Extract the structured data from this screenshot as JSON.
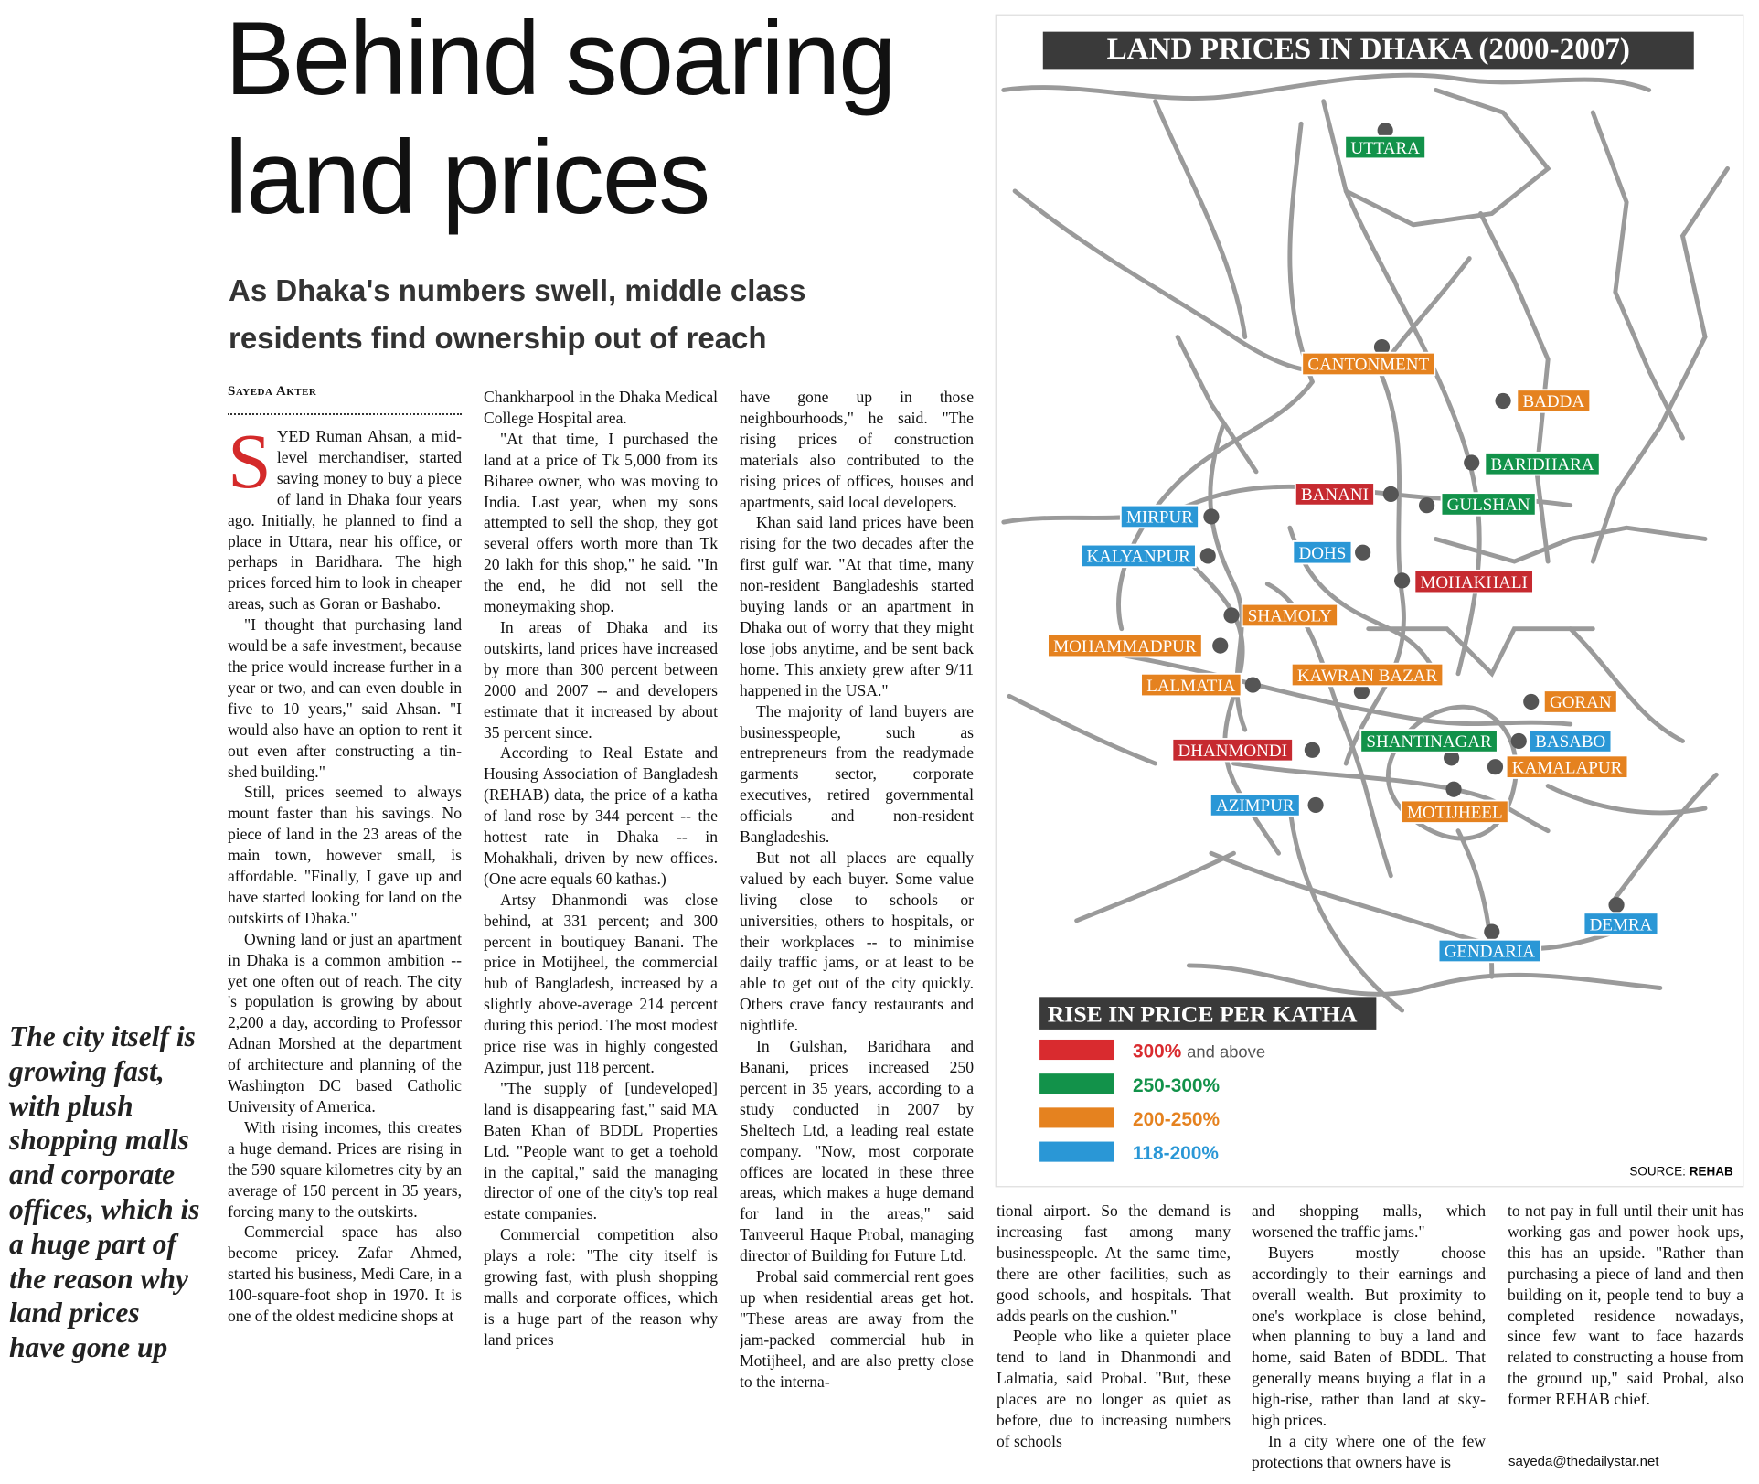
{
  "headline": [
    "Behind soaring",
    "land prices"
  ],
  "subhead": [
    "As Dhaka's numbers swell, middle class",
    "residents find ownership out of reach"
  ],
  "byline": "Sayeda Akter",
  "drop_cap": "S",
  "pull_quote": "The city itself is growing fast, with plush shopping malls and corporate offices, which is a huge part of the reason why land prices have gone up",
  "columns": [
    [
      "YED Ruman Ahsan, a mid-level merchandiser, started saving money to buy a piece of land in Dhaka four years ago. Initially, he planned to find a place in Uttara, near his office, or perhaps in Baridhara. The high prices forced him to look in cheaper areas, such as Goran or Bashabo.",
      "\"I thought that purchasing land would be a safe investment, because the price would increase further in a year or two, and can even double in five to 10 years,\" said Ahsan. \"I would also have an option to rent it out even after constructing a tin-shed building.\"",
      "Still, prices seemed to always mount faster than his savings. No piece of land in the 23 areas of the main town, however small, is affordable. \"Finally, I gave up and have started looking for land on the outskirts of Dhaka.\"",
      "Owning land or just an apartment in Dhaka is a common ambition -- yet one often out of reach. The city 's population is growing by about 2,200 a day, according to Professor Adnan Morshed at the department of architecture and planning of the Washington DC based Catholic University of America.",
      "With rising incomes, this creates a huge demand. Prices are rising in the 590 square kilometres city by an average of 150 percent in 35 years, forcing many to the outskirts.",
      "Commercial space has also become pricey. Zafar Ahmed, started his business, Medi Care, in a 100-square-foot shop in 1970. It is one of the oldest medicine shops at"
    ],
    [
      "Chankharpool in the Dhaka Medical College Hospital area.",
      "\"At that time, I purchased the land at a price of Tk 5,000 from its Biharee owner, who was moving to India. Last year, when my sons attempted to sell the shop, they got several offers worth more than Tk 20 lakh for this shop,\" he said. \"In the end, he did not sell the moneymaking shop.",
      "In areas of Dhaka and its outskirts, land prices have increased by more than 300 percent between 2000 and 2007 -- and developers estimate that it increased by about 35 percent since.",
      "According to Real Estate and Housing Association of Bangladesh (REHAB) data, the price of a katha of land rose by 344 percent -- the hottest rate in Dhaka -- in Mohakhali, driven by new offices. (One acre equals 60 kathas.)",
      "Artsy Dhanmondi was close behind, at 331 percent; and 300 percent in boutiquey Banani. The price in Motijheel, the commercial hub of Bangladesh, increased by a slightly above-average 214 percent during this period. The most modest price rise was in highly congested Azimpur, just 118 percent.",
      "\"The supply of [undeveloped] land is disappearing fast,\" said MA Baten Khan of BDDL Properties Ltd. \"People want to get a toehold in the capital,\" said the managing director of one of the city's top real estate companies.",
      "Commercial competition also plays a role: \"The city itself is growing fast, with plush shopping malls and corporate offices, which is a huge part of the reason why land prices"
    ],
    [
      "have gone up in those neighbourhoods,\" he said. \"The rising prices of construction materials also contributed to the rising prices of offices, houses and apartments, said local developers.",
      "Khan said land prices have been rising for the two decades after the first gulf war. \"At that time, many non-resident Bangladeshis started buying lands or an apartment in Dhaka out of worry that they might lose jobs anytime, and be sent back home. This anxiety grew after 9/11 happened in the USA.\"",
      "The majority of land buyers are businesspeople, such as entrepreneurs from the readymade garments sector, corporate executives, retired governmental officials and non-resident Bangladeshis.",
      "But not all places are equally valued by each buyer. Some value living close to schools or universities, others to hospitals, or their workplaces -- to minimise daily traffic jams, or at least to be able to get out of the city quickly. Others crave fancy restaurants and nightlife.",
      "In Gulshan, Baridhara and Banani, prices increased 250 percent in 35 years, according to a study conducted in 2007 by Sheltech Ltd, a leading real estate company. \"Now, most corporate offices are located in these three areas, which makes a huge demand for land in the areas,\" said Tanveerul Haque Probal, managing director of Building for Future Ltd.",
      "Probal said commercial rent goes up when residential areas get hot. \"These areas are away from the jam-packed commercial hub in Motijheel, and are also pretty close to the interna-"
    ],
    [
      "tional airport. So the demand is increasing fast among many businesspeople. At the same time, there are other facilities, such as good schools, and hospitals. That adds pearls on the cushion.\"",
      "People who like a quieter place tend to land in Dhanmondi and Lalmatia, said Probal. \"But, these places are no longer as quiet as before, due to increasing numbers of schools"
    ],
    [
      "and shopping malls, which worsened the traffic jams.\"",
      "Buyers mostly choose accordingly to their earnings and overall wealth. But proximity to one's workplace is close behind, when planning to buy a land and home, said Baten of BDDL. That generally means buying a flat in a high-rise, rather than land at sky-high prices.",
      "In a city where one of the few protections that owners have is"
    ],
    [
      "to not pay in full until their unit has working gas and power hook ups, this has an upside. \"Rather than purchasing a piece of land and then building on it, people tend to buy a completed residence nowadays, since few want to face hazards related to constructing a house from the ground up,\" said Probal, also former REHAB chief."
    ]
  ],
  "email": "sayeda@thedailystar.net",
  "map": {
    "title": "LAND PRICES IN DHAKA (2000-2007)",
    "locations": [
      {
        "name": "UTTARA",
        "color": "#12924a"
      },
      {
        "name": "CANTONMENT",
        "color": "#e5821f"
      },
      {
        "name": "BADDA",
        "color": "#e5821f"
      },
      {
        "name": "BARIDHARA",
        "color": "#12924a"
      },
      {
        "name": "BANANI",
        "color": "#c62a30"
      },
      {
        "name": "GULSHAN",
        "color": "#12924a"
      },
      {
        "name": "MIRPUR",
        "color": "#2a97d6"
      },
      {
        "name": "KALYANPUR",
        "color": "#2a97d6"
      },
      {
        "name": "DOHS",
        "color": "#2a97d6"
      },
      {
        "name": "MOHAKHALI",
        "color": "#c62a30"
      },
      {
        "name": "SHAMOLY",
        "color": "#e5821f"
      },
      {
        "name": "MOHAMMADPUR",
        "color": "#e5821f"
      },
      {
        "name": "KAWRAN BAZAR",
        "color": "#e5821f"
      },
      {
        "name": "LALMATIA",
        "color": "#e5821f"
      },
      {
        "name": "GORAN",
        "color": "#e5821f"
      },
      {
        "name": "SHANTINAGAR",
        "color": "#12924a"
      },
      {
        "name": "BASABO",
        "color": "#2a97d6"
      },
      {
        "name": "DHANMONDI",
        "color": "#c62a30"
      },
      {
        "name": "KAMALAPUR",
        "color": "#e5821f"
      },
      {
        "name": "AZIMPUR",
        "color": "#2a97d6"
      },
      {
        "name": "MOTIJHEEL",
        "color": "#e5821f"
      },
      {
        "name": "DEMRA",
        "color": "#2a97d6"
      },
      {
        "name": "GENDARIA",
        "color": "#2a97d6"
      }
    ],
    "legend": {
      "title": "RISE IN PRICE PER KATHA",
      "entries": [
        {
          "label": "300%",
          "note": "and above",
          "color": "#d92b2f"
        },
        {
          "label": "250-300%",
          "color": "#12924a"
        },
        {
          "label": "200-250%",
          "color": "#e5821f"
        },
        {
          "label": "118-200%",
          "color": "#2a97d6"
        }
      ]
    },
    "source": {
      "prefix": "SOURCE:",
      "name": "REHAB"
    }
  }
}
